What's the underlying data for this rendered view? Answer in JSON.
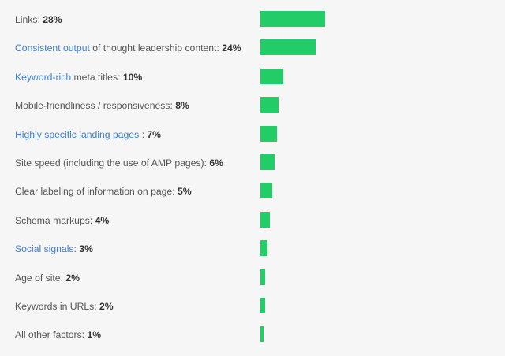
{
  "colors": {
    "background": "#f6f6f6",
    "bar": "#22cc66",
    "label_text": "#555555",
    "link_text": "#3f7fd1",
    "value_text": "#333333"
  },
  "chart_data": {
    "type": "bar",
    "orientation": "horizontal",
    "title": "",
    "xlabel": "",
    "ylabel": "",
    "xlim": [
      0,
      28
    ],
    "grid": false,
    "legend": "none",
    "categories": [
      "Links",
      "Consistent output of thought leadership content",
      "Keyword-rich meta titles",
      "Mobile-friendliness / responsiveness",
      "Highly specific landing pages ",
      "Site speed (including the use of AMP pages)",
      "Clear labeling of information on page",
      "Schema markups",
      "Social signals",
      "Age of site",
      "Keywords in URLs",
      "All other factors"
    ],
    "values": [
      28,
      24,
      10,
      8,
      7,
      6,
      5,
      4,
      3,
      2,
      2,
      1
    ],
    "value_labels": [
      "28%",
      "24%",
      "10%",
      "8%",
      "7%",
      "6%",
      "5%",
      "4%",
      "3%",
      "2%",
      "2%",
      "1%"
    ],
    "label_parts": [
      [
        {
          "text": "Links",
          "link": false
        }
      ],
      [
        {
          "text": "Consistent output",
          "link": true
        },
        {
          "text": " of thought leadership content",
          "link": false
        }
      ],
      [
        {
          "text": "Keyword-rich",
          "link": true
        },
        {
          "text": " meta titles",
          "link": false
        }
      ],
      [
        {
          "text": "Mobile-friendliness / responsiveness",
          "link": false
        }
      ],
      [
        {
          "text": "Highly specific landing pages",
          "link": true
        },
        {
          "text": " ",
          "link": false
        }
      ],
      [
        {
          "text": "Site speed (including the use of AMP pages)",
          "link": false
        }
      ],
      [
        {
          "text": "Clear labeling of information on page",
          "link": false
        }
      ],
      [
        {
          "text": "Schema markups",
          "link": false
        }
      ],
      [
        {
          "text": "Social signals",
          "link": true
        }
      ],
      [
        {
          "text": "Age of site",
          "link": false
        }
      ],
      [
        {
          "text": "Keywords in URLs",
          "link": false
        }
      ],
      [
        {
          "text": "All other factors",
          "link": false
        }
      ]
    ]
  }
}
